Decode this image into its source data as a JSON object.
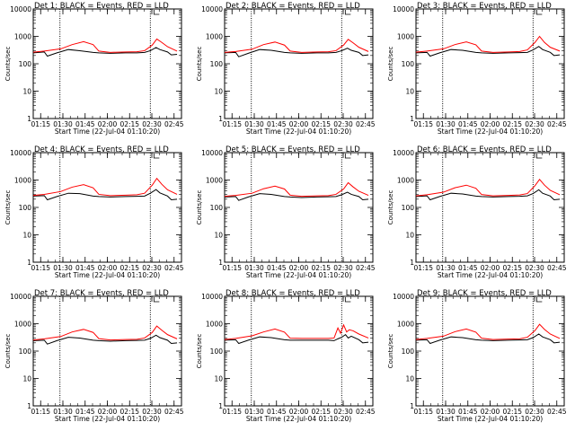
{
  "chart_data": {
    "type": "line",
    "layout": "3x3 grid",
    "y_scale": "log",
    "ylim": [
      1,
      10000
    ],
    "y_ticks": [
      "1",
      "10",
      "100",
      "1000",
      "10000"
    ],
    "ylabel": "Counts/sec",
    "xlabel": "Start Time (22-Jul-04 01:10:20)",
    "x_ticks": [
      "01:15",
      "01:30",
      "01:45",
      "02:00",
      "02:15",
      "02:30",
      "02:45"
    ],
    "xlim": [
      "01:10",
      "02:50"
    ],
    "vertical_markers": [
      "01:28",
      "02:29"
    ],
    "series_colors": {
      "Events": "#000000",
      "LLD": "#ff0000"
    },
    "panels": [
      {
        "title": "Det 1: BLACK = Events, RED = LLD",
        "events": [
          [
            1.18,
            250
          ],
          [
            1.47,
            270
          ],
          [
            1.55,
            190
          ],
          [
            1.8,
            250
          ],
          [
            2.1,
            330
          ],
          [
            2.4,
            300
          ],
          [
            2.75,
            260
          ],
          [
            2.9,
            250
          ],
          [
            3.2,
            240
          ],
          [
            3.6,
            250
          ],
          [
            3.9,
            250
          ],
          [
            4.1,
            260
          ],
          [
            4.25,
            300
          ],
          [
            4.4,
            390
          ],
          [
            4.5,
            330
          ],
          [
            4.7,
            270
          ],
          [
            4.8,
            210
          ],
          [
            4.95,
            220
          ]
        ],
        "lld": [
          [
            1.18,
            265
          ],
          [
            1.47,
            290
          ],
          [
            1.9,
            350
          ],
          [
            2.2,
            500
          ],
          [
            2.5,
            640
          ],
          [
            2.75,
            500
          ],
          [
            2.9,
            290
          ],
          [
            3.2,
            260
          ],
          [
            3.6,
            270
          ],
          [
            3.9,
            275
          ],
          [
            4.1,
            300
          ],
          [
            4.3,
            480
          ],
          [
            4.42,
            800
          ],
          [
            4.55,
            600
          ],
          [
            4.7,
            420
          ],
          [
            4.95,
            290
          ]
        ]
      },
      {
        "title": "Det 2: BLACK = Events, RED = LLD",
        "events": [
          [
            1.18,
            250
          ],
          [
            1.47,
            260
          ],
          [
            1.55,
            180
          ],
          [
            1.8,
            240
          ],
          [
            2.1,
            330
          ],
          [
            2.4,
            310
          ],
          [
            2.75,
            260
          ],
          [
            2.9,
            250
          ],
          [
            3.2,
            240
          ],
          [
            3.6,
            250
          ],
          [
            3.9,
            250
          ],
          [
            4.1,
            260
          ],
          [
            4.25,
            300
          ],
          [
            4.4,
            370
          ],
          [
            4.5,
            310
          ],
          [
            4.7,
            260
          ],
          [
            4.8,
            200
          ],
          [
            4.95,
            210
          ]
        ],
        "lld": [
          [
            1.18,
            260
          ],
          [
            1.47,
            280
          ],
          [
            1.9,
            340
          ],
          [
            2.2,
            500
          ],
          [
            2.5,
            620
          ],
          [
            2.75,
            480
          ],
          [
            2.9,
            290
          ],
          [
            3.2,
            260
          ],
          [
            3.6,
            270
          ],
          [
            3.9,
            275
          ],
          [
            4.1,
            300
          ],
          [
            4.3,
            480
          ],
          [
            4.42,
            780
          ],
          [
            4.55,
            580
          ],
          [
            4.7,
            400
          ],
          [
            4.95,
            280
          ]
        ]
      },
      {
        "title": "Det 3: BLACK = Events, RED = LLD",
        "events": [
          [
            1.18,
            250
          ],
          [
            1.47,
            260
          ],
          [
            1.55,
            190
          ],
          [
            1.8,
            250
          ],
          [
            2.1,
            330
          ],
          [
            2.4,
            310
          ],
          [
            2.75,
            260
          ],
          [
            2.9,
            250
          ],
          [
            3.2,
            240
          ],
          [
            3.6,
            250
          ],
          [
            3.9,
            255
          ],
          [
            4.1,
            260
          ],
          [
            4.25,
            320
          ],
          [
            4.4,
            430
          ],
          [
            4.5,
            330
          ],
          [
            4.7,
            260
          ],
          [
            4.8,
            200
          ],
          [
            4.95,
            210
          ]
        ],
        "lld": [
          [
            1.18,
            265
          ],
          [
            1.47,
            290
          ],
          [
            1.9,
            350
          ],
          [
            2.2,
            500
          ],
          [
            2.5,
            630
          ],
          [
            2.75,
            490
          ],
          [
            2.9,
            290
          ],
          [
            3.2,
            260
          ],
          [
            3.6,
            270
          ],
          [
            3.9,
            280
          ],
          [
            4.1,
            320
          ],
          [
            4.3,
            600
          ],
          [
            4.42,
            1000
          ],
          [
            4.55,
            600
          ],
          [
            4.7,
            400
          ],
          [
            4.95,
            290
          ]
        ]
      },
      {
        "title": "Det 4: BLACK = Events, RED = LLD",
        "events": [
          [
            1.18,
            260
          ],
          [
            1.47,
            270
          ],
          [
            1.55,
            190
          ],
          [
            1.8,
            250
          ],
          [
            2.1,
            330
          ],
          [
            2.4,
            320
          ],
          [
            2.75,
            260
          ],
          [
            2.9,
            250
          ],
          [
            3.2,
            240
          ],
          [
            3.6,
            250
          ],
          [
            3.9,
            255
          ],
          [
            4.1,
            260
          ],
          [
            4.25,
            330
          ],
          [
            4.4,
            450
          ],
          [
            4.5,
            340
          ],
          [
            4.7,
            260
          ],
          [
            4.8,
            190
          ],
          [
            4.95,
            200
          ]
        ],
        "lld": [
          [
            1.18,
            275
          ],
          [
            1.47,
            300
          ],
          [
            1.9,
            380
          ],
          [
            2.2,
            550
          ],
          [
            2.5,
            680
          ],
          [
            2.75,
            520
          ],
          [
            2.9,
            300
          ],
          [
            3.2,
            270
          ],
          [
            3.6,
            280
          ],
          [
            3.9,
            290
          ],
          [
            4.1,
            330
          ],
          [
            4.3,
            650
          ],
          [
            4.42,
            1150
          ],
          [
            4.55,
            700
          ],
          [
            4.7,
            440
          ],
          [
            4.95,
            300
          ]
        ]
      },
      {
        "title": "Det 5: BLACK = Events, RED = LLD",
        "events": [
          [
            1.18,
            240
          ],
          [
            1.47,
            250
          ],
          [
            1.55,
            180
          ],
          [
            1.8,
            240
          ],
          [
            2.1,
            320
          ],
          [
            2.4,
            300
          ],
          [
            2.75,
            250
          ],
          [
            2.9,
            240
          ],
          [
            3.2,
            230
          ],
          [
            3.6,
            240
          ],
          [
            3.9,
            245
          ],
          [
            4.1,
            250
          ],
          [
            4.25,
            290
          ],
          [
            4.4,
            360
          ],
          [
            4.5,
            300
          ],
          [
            4.7,
            250
          ],
          [
            4.8,
            190
          ],
          [
            4.95,
            200
          ]
        ],
        "lld": [
          [
            1.18,
            255
          ],
          [
            1.47,
            275
          ],
          [
            1.9,
            330
          ],
          [
            2.2,
            480
          ],
          [
            2.5,
            600
          ],
          [
            2.75,
            470
          ],
          [
            2.9,
            280
          ],
          [
            3.2,
            255
          ],
          [
            3.6,
            265
          ],
          [
            3.9,
            270
          ],
          [
            4.1,
            300
          ],
          [
            4.3,
            470
          ],
          [
            4.42,
            800
          ],
          [
            4.55,
            560
          ],
          [
            4.7,
            390
          ],
          [
            4.95,
            275
          ]
        ]
      },
      {
        "title": "Det 6: BLACK = Events, RED = LLD",
        "events": [
          [
            1.18,
            250
          ],
          [
            1.47,
            265
          ],
          [
            1.55,
            190
          ],
          [
            1.8,
            250
          ],
          [
            2.1,
            330
          ],
          [
            2.4,
            310
          ],
          [
            2.75,
            260
          ],
          [
            2.9,
            250
          ],
          [
            3.2,
            240
          ],
          [
            3.6,
            250
          ],
          [
            3.9,
            255
          ],
          [
            4.1,
            265
          ],
          [
            4.25,
            320
          ],
          [
            4.4,
            440
          ],
          [
            4.5,
            330
          ],
          [
            4.7,
            260
          ],
          [
            4.8,
            190
          ],
          [
            4.95,
            200
          ]
        ],
        "lld": [
          [
            1.18,
            265
          ],
          [
            1.47,
            290
          ],
          [
            1.9,
            360
          ],
          [
            2.2,
            520
          ],
          [
            2.5,
            650
          ],
          [
            2.75,
            500
          ],
          [
            2.9,
            295
          ],
          [
            3.2,
            265
          ],
          [
            3.6,
            275
          ],
          [
            3.9,
            285
          ],
          [
            4.1,
            320
          ],
          [
            4.3,
            620
          ],
          [
            4.42,
            1050
          ],
          [
            4.55,
            650
          ],
          [
            4.7,
            420
          ],
          [
            4.95,
            290
          ]
        ]
      },
      {
        "title": "Det 7: BLACK = Events, RED = LLD",
        "events": [
          [
            1.18,
            240
          ],
          [
            1.47,
            250
          ],
          [
            1.55,
            180
          ],
          [
            1.8,
            240
          ],
          [
            2.1,
            320
          ],
          [
            2.4,
            300
          ],
          [
            2.75,
            250
          ],
          [
            2.9,
            240
          ],
          [
            3.2,
            230
          ],
          [
            3.6,
            240
          ],
          [
            3.9,
            245
          ],
          [
            4.1,
            250
          ],
          [
            4.25,
            290
          ],
          [
            4.4,
            380
          ],
          [
            4.5,
            310
          ],
          [
            4.7,
            250
          ],
          [
            4.8,
            190
          ],
          [
            4.95,
            200
          ]
        ],
        "lld": [
          [
            1.18,
            255
          ],
          [
            1.47,
            280
          ],
          [
            1.9,
            340
          ],
          [
            2.2,
            500
          ],
          [
            2.5,
            620
          ],
          [
            2.75,
            480
          ],
          [
            2.9,
            285
          ],
          [
            3.2,
            255
          ],
          [
            3.6,
            265
          ],
          [
            3.9,
            270
          ],
          [
            4.1,
            300
          ],
          [
            4.3,
            480
          ],
          [
            4.42,
            820
          ],
          [
            4.55,
            580
          ],
          [
            4.7,
            400
          ],
          [
            4.95,
            280
          ]
        ]
      },
      {
        "title": "Det 8: BLACK = Events, RED = LLD",
        "events": [
          [
            1.18,
            250
          ],
          [
            1.47,
            260
          ],
          [
            1.55,
            190
          ],
          [
            1.8,
            250
          ],
          [
            2.1,
            330
          ],
          [
            2.4,
            310
          ],
          [
            2.75,
            260
          ],
          [
            2.9,
            250
          ],
          [
            3.2,
            250
          ],
          [
            3.6,
            250
          ],
          [
            3.9,
            250
          ],
          [
            4.05,
            240
          ],
          [
            4.15,
            280
          ],
          [
            4.25,
            320
          ],
          [
            4.35,
            400
          ],
          [
            4.42,
            300
          ],
          [
            4.5,
            350
          ],
          [
            4.7,
            260
          ],
          [
            4.8,
            200
          ],
          [
            4.95,
            210
          ]
        ],
        "lld": [
          [
            1.18,
            265
          ],
          [
            1.47,
            290
          ],
          [
            1.9,
            360
          ],
          [
            2.2,
            500
          ],
          [
            2.5,
            640
          ],
          [
            2.75,
            490
          ],
          [
            2.9,
            295
          ],
          [
            3.2,
            290
          ],
          [
            3.6,
            290
          ],
          [
            3.9,
            290
          ],
          [
            4.05,
            300
          ],
          [
            4.15,
            700
          ],
          [
            4.22,
            450
          ],
          [
            4.3,
            900
          ],
          [
            4.38,
            500
          ],
          [
            4.45,
            600
          ],
          [
            4.55,
            550
          ],
          [
            4.7,
            420
          ],
          [
            4.95,
            300
          ]
        ]
      },
      {
        "title": "Det 9: BLACK = Events, RED = LLD",
        "events": [
          [
            1.18,
            250
          ],
          [
            1.47,
            260
          ],
          [
            1.55,
            190
          ],
          [
            1.8,
            250
          ],
          [
            2.1,
            330
          ],
          [
            2.4,
            310
          ],
          [
            2.75,
            260
          ],
          [
            2.9,
            250
          ],
          [
            3.2,
            240
          ],
          [
            3.6,
            250
          ],
          [
            3.9,
            255
          ],
          [
            4.1,
            260
          ],
          [
            4.25,
            310
          ],
          [
            4.4,
            420
          ],
          [
            4.5,
            330
          ],
          [
            4.7,
            260
          ],
          [
            4.8,
            200
          ],
          [
            4.95,
            210
          ]
        ],
        "lld": [
          [
            1.18,
            265
          ],
          [
            1.47,
            290
          ],
          [
            1.9,
            350
          ],
          [
            2.2,
            510
          ],
          [
            2.5,
            640
          ],
          [
            2.75,
            490
          ],
          [
            2.9,
            295
          ],
          [
            3.2,
            265
          ],
          [
            3.6,
            275
          ],
          [
            3.9,
            280
          ],
          [
            4.1,
            320
          ],
          [
            4.3,
            560
          ],
          [
            4.42,
            950
          ],
          [
            4.55,
            620
          ],
          [
            4.7,
            420
          ],
          [
            4.95,
            290
          ]
        ]
      }
    ]
  }
}
